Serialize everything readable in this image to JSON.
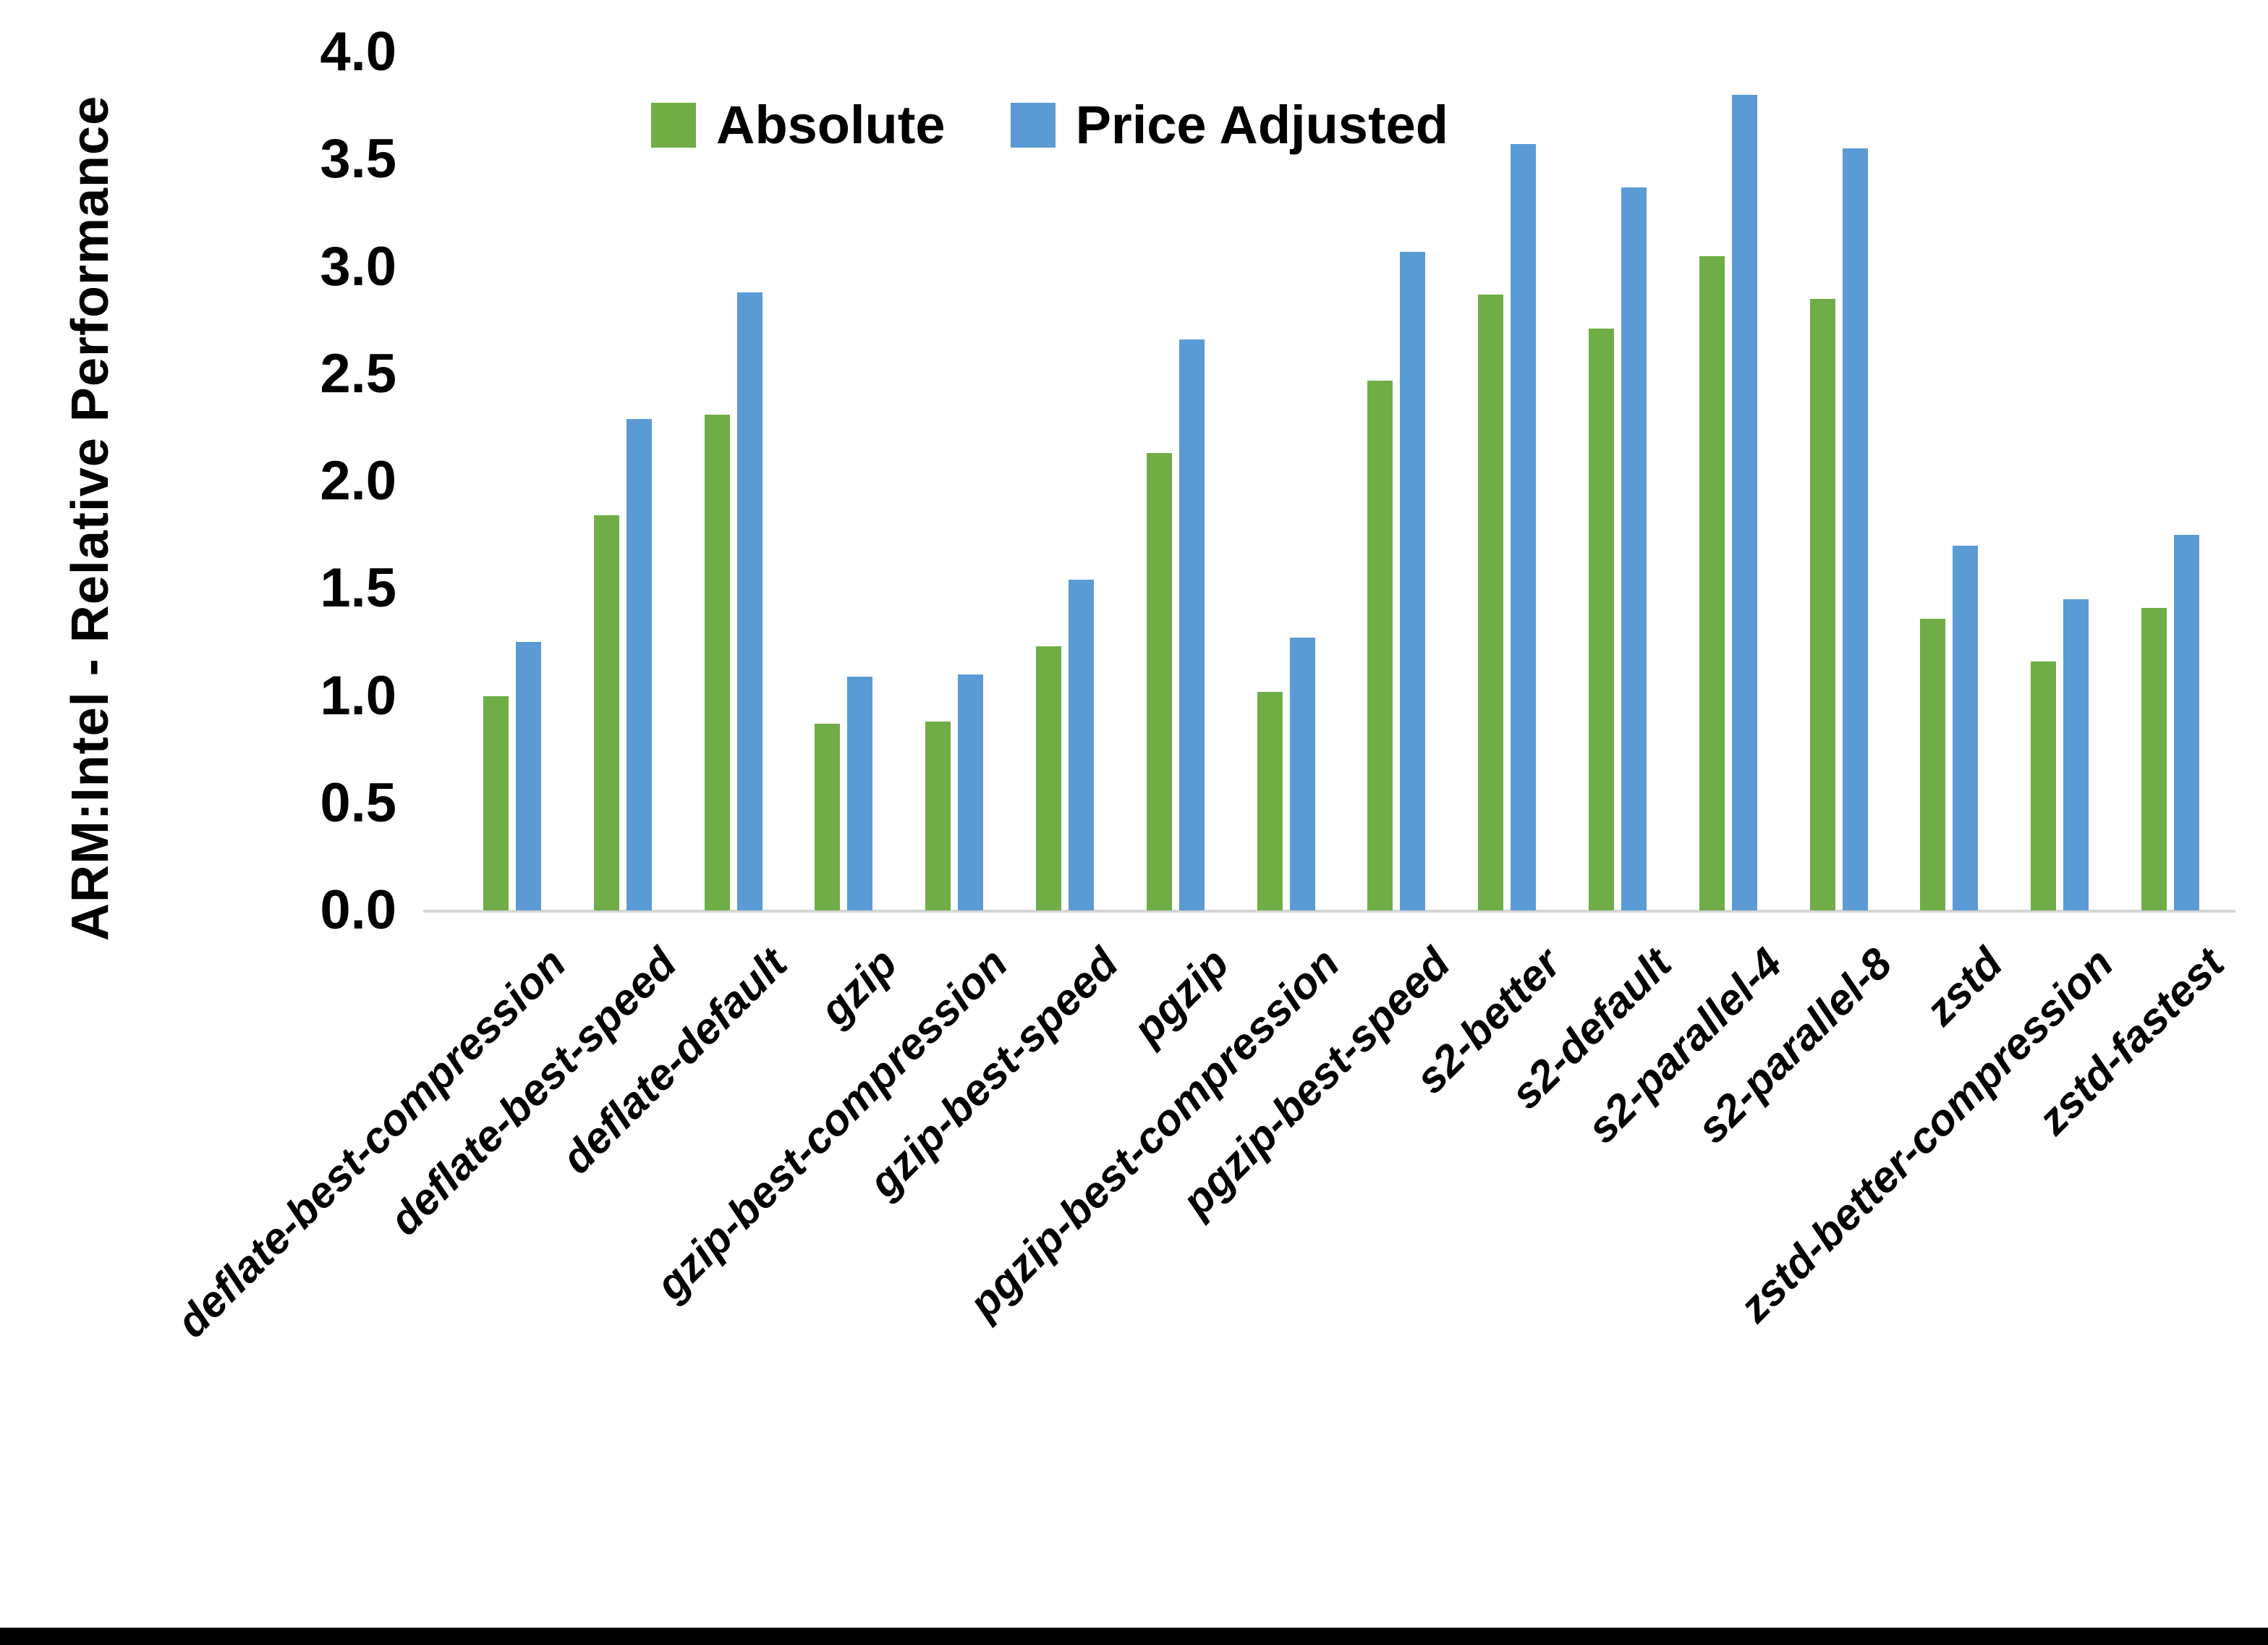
{
  "figure": {
    "ylabel": "ARM:Intel - Relative Performance",
    "background_color": "#ffffff",
    "axis_line_color": "#d6d6d6",
    "bottom_border_color": "#000000"
  },
  "legend": {
    "entries": [
      {
        "label": "Absolute",
        "color": "#70AD47",
        "swatch": "green-square-icon"
      },
      {
        "label": "Price Adjusted",
        "color": "#5B9BD5",
        "swatch": "blue-square-icon"
      }
    ]
  },
  "chart_data": {
    "type": "bar",
    "title": "",
    "xlabel": "",
    "ylabel": "ARM:Intel - Relative Performance",
    "ylim": [
      0.0,
      4.0
    ],
    "ytick_step": 0.5,
    "ytick_labels": [
      "0.0",
      "0.5",
      "1.0",
      "1.5",
      "2.0",
      "2.5",
      "3.0",
      "3.5",
      "4.0"
    ],
    "grid": false,
    "legend_position": "top-center",
    "categories": [
      "deflate-best-compression",
      "deflate-best-speed",
      "deflate-default",
      "gzip",
      "gzip-best-compression",
      "gzip-best-speed",
      "pgzip",
      "pgzip-best-compression",
      "pgzip-best-speed",
      "s2-better",
      "s2-default",
      "s2-parallel-4",
      "s2-parallel-8",
      "zstd",
      "zstd-better-compression",
      "zstd-fastest"
    ],
    "series": [
      {
        "name": "Absolute",
        "color": "#70AD47",
        "values": [
          1.0,
          1.84,
          2.31,
          0.87,
          0.88,
          1.23,
          2.13,
          1.02,
          2.47,
          2.87,
          2.71,
          3.05,
          2.85,
          1.36,
          1.16,
          1.41
        ]
      },
      {
        "name": "Price Adjusted",
        "color": "#5B9BD5",
        "values": [
          1.25,
          2.29,
          2.88,
          1.09,
          1.1,
          1.54,
          2.66,
          1.27,
          3.07,
          3.57,
          3.37,
          3.8,
          3.55,
          1.7,
          1.45,
          1.75
        ]
      }
    ]
  }
}
